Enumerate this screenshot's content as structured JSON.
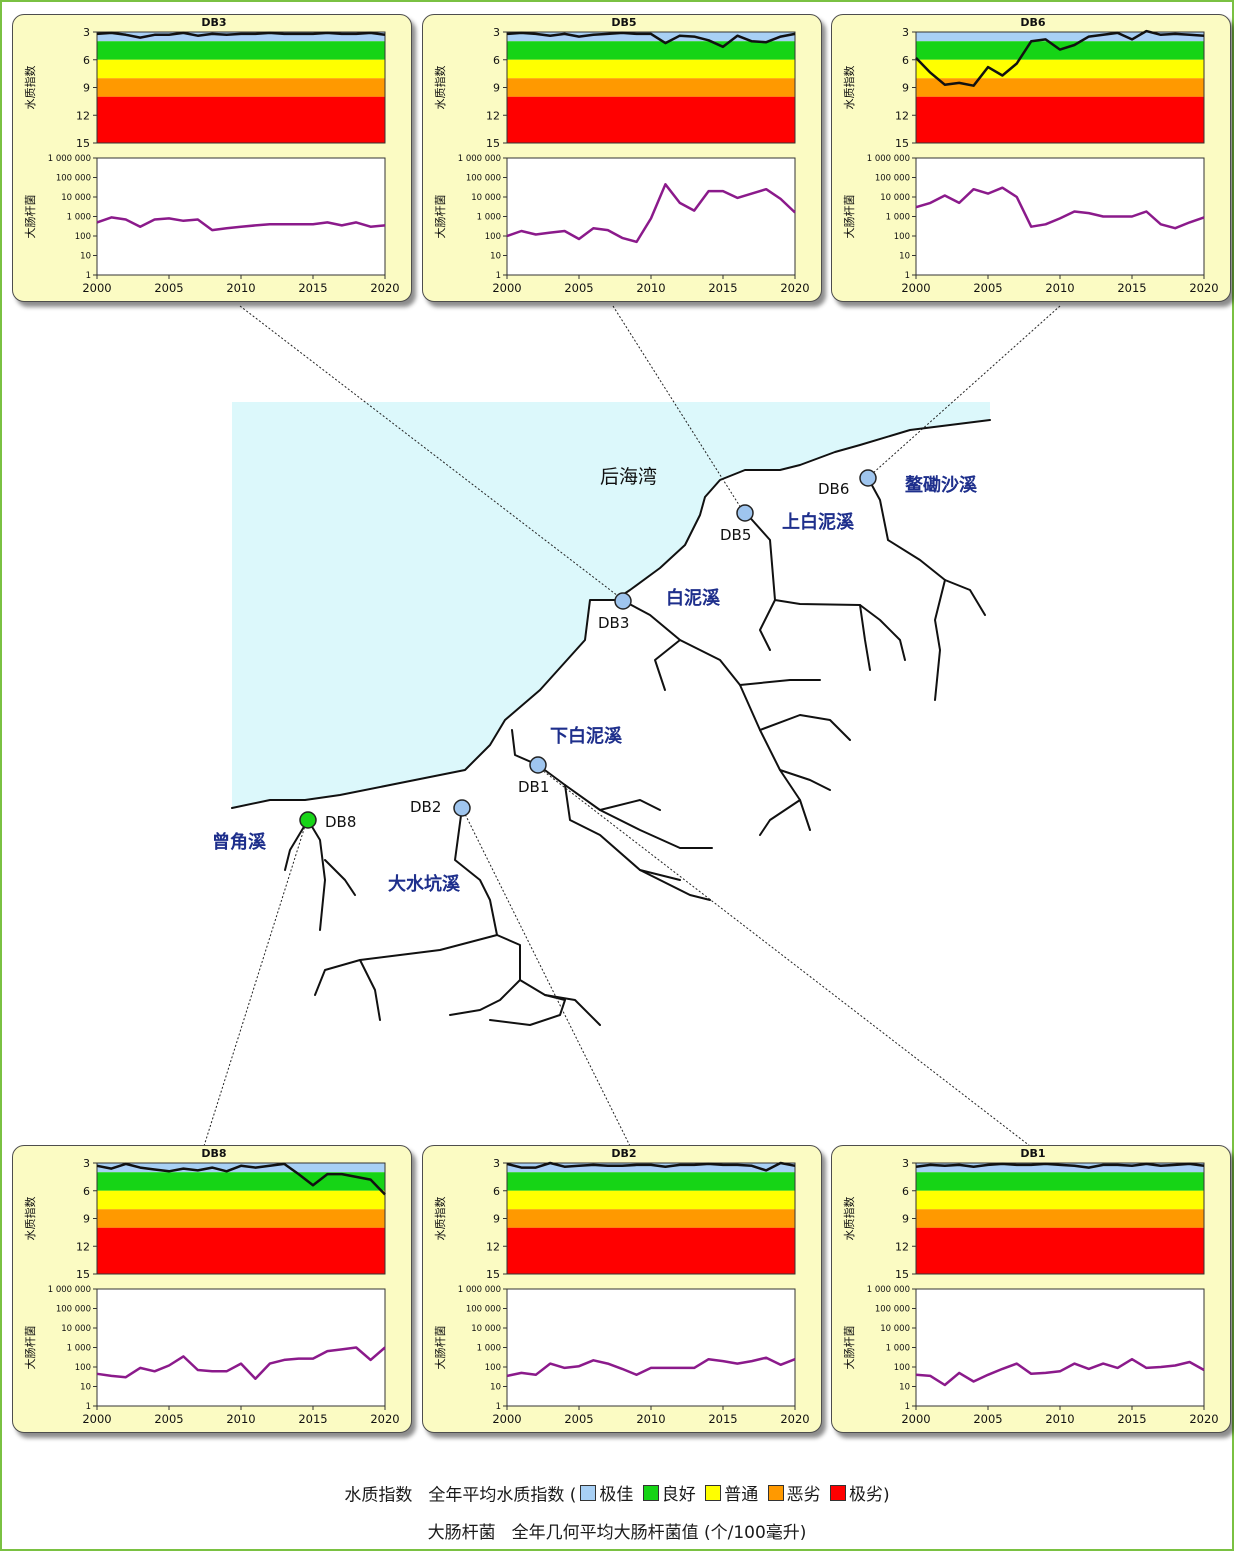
{
  "map": {
    "bay_label": "后海湾",
    "stream_labels": [
      "鳌磡沙溪",
      "上白泥溪",
      "白泥溪",
      "下白泥溪",
      "曾角溪",
      "大水坑溪"
    ],
    "station_labels": [
      "DB6",
      "DB5",
      "DB3",
      "DB1",
      "DB2",
      "DB8"
    ],
    "colors": {
      "sea": "#dcf8fb",
      "station_excellent": "#9fc5ee",
      "station_good": "#18d418",
      "stream_label": "#1e2f8c"
    }
  },
  "panel_text": {
    "wqi_label": "水质指数",
    "ecoli_label": "大肠杆菌",
    "wqi_ticks": [
      "3",
      "6",
      "9",
      "12",
      "15"
    ],
    "ecoli_ticks": [
      "1 000 000",
      "100 000",
      "10 000",
      "1 000",
      "100",
      "10",
      "1"
    ],
    "x_ticks": [
      "2000",
      "2005",
      "2010",
      "2015",
      "2020"
    ]
  },
  "legend": {
    "line1_term": "水质指数",
    "line1_desc": "全年平均水质指数 (",
    "categories": [
      "极佳",
      "良好",
      "普通",
      "恶劣",
      "极劣"
    ],
    "category_colors": [
      "#a8d0f5",
      "#16d416",
      "#ffff00",
      "#ff9900",
      "#ff0000"
    ],
    "close": ")",
    "line2_term": "大肠杆菌",
    "line2_desc": "全年几何平均大肠杆菌值 (个/100毫升)"
  },
  "chart_data": [
    {
      "type": "line",
      "title": "DB3",
      "x": [
        2000,
        2001,
        2002,
        2003,
        2004,
        2005,
        2006,
        2007,
        2008,
        2009,
        2010,
        2011,
        2012,
        2013,
        2014,
        2015,
        2016,
        2017,
        2018,
        2019,
        2020
      ],
      "wqi": [
        3.2,
        3.1,
        3.3,
        3.6,
        3.3,
        3.3,
        3.1,
        3.4,
        3.2,
        3.3,
        3.2,
        3.2,
        3.1,
        3.2,
        3.2,
        3.2,
        3.1,
        3.2,
        3.2,
        3.1,
        3.3
      ],
      "ecoli": [
        500,
        900,
        700,
        300,
        700,
        800,
        600,
        700,
        200,
        250,
        300,
        350,
        400,
        400,
        400,
        400,
        500,
        350,
        500,
        300,
        350
      ]
    },
    {
      "type": "line",
      "title": "DB5",
      "x": [
        2000,
        2001,
        2002,
        2003,
        2004,
        2005,
        2006,
        2007,
        2008,
        2009,
        2010,
        2011,
        2012,
        2013,
        2014,
        2015,
        2016,
        2017,
        2018,
        2019,
        2020
      ],
      "wqi": [
        3.2,
        3.1,
        3.2,
        3.4,
        3.2,
        3.5,
        3.3,
        3.2,
        3.1,
        3.2,
        3.2,
        4.2,
        3.4,
        3.5,
        3.9,
        4.6,
        3.4,
        4.0,
        4.1,
        3.5,
        3.2
      ],
      "ecoli": [
        100,
        180,
        120,
        150,
        180,
        70,
        250,
        200,
        80,
        50,
        800,
        45000,
        5000,
        2000,
        20000,
        20000,
        9000,
        15000,
        25000,
        8000,
        1600
      ]
    },
    {
      "type": "line",
      "title": "DB6",
      "x": [
        2000,
        2001,
        2002,
        2003,
        2004,
        2005,
        2006,
        2007,
        2008,
        2009,
        2010,
        2011,
        2012,
        2013,
        2014,
        2015,
        2016,
        2017,
        2018,
        2019,
        2020
      ],
      "wqi": [
        5.8,
        7.4,
        8.7,
        8.5,
        8.8,
        6.8,
        7.7,
        6.4,
        4.0,
        3.8,
        4.9,
        4.4,
        3.5,
        3.3,
        3.1,
        3.8,
        2.9,
        3.3,
        3.2,
        3.3,
        3.4
      ],
      "ecoli": [
        3000,
        5000,
        12000,
        5000,
        25000,
        15000,
        30000,
        10000,
        300,
        400,
        800,
        1800,
        1500,
        1000,
        1000,
        1000,
        1800,
        400,
        250,
        500,
        900
      ]
    },
    {
      "type": "line",
      "title": "DB8",
      "x": [
        2000,
        2001,
        2002,
        2003,
        2004,
        2005,
        2006,
        2007,
        2008,
        2009,
        2010,
        2011,
        2012,
        2013,
        2014,
        2015,
        2016,
        2017,
        2018,
        2019,
        2020
      ],
      "wqi": [
        3.3,
        3.6,
        3.1,
        3.5,
        3.7,
        3.9,
        3.6,
        3.8,
        3.5,
        3.9,
        3.3,
        3.5,
        3.3,
        3.1,
        4.2,
        5.4,
        4.2,
        4.2,
        4.5,
        4.8,
        6.4
      ],
      "ecoli": [
        45,
        35,
        30,
        90,
        60,
        120,
        350,
        70,
        60,
        60,
        150,
        25,
        150,
        230,
        270,
        270,
        650,
        800,
        1000,
        230,
        1000
      ]
    },
    {
      "type": "line",
      "title": "DB2",
      "x": [
        2000,
        2001,
        2002,
        2003,
        2004,
        2005,
        2006,
        2007,
        2008,
        2009,
        2010,
        2011,
        2012,
        2013,
        2014,
        2015,
        2016,
        2017,
        2018,
        2019,
        2020
      ],
      "wqi": [
        3.1,
        3.5,
        3.5,
        3.0,
        3.4,
        3.3,
        3.2,
        3.3,
        3.3,
        3.2,
        3.2,
        3.4,
        3.2,
        3.2,
        3.1,
        3.2,
        3.2,
        3.3,
        3.8,
        3.0,
        3.3
      ],
      "ecoli": [
        35,
        50,
        40,
        150,
        90,
        110,
        220,
        150,
        80,
        40,
        90,
        90,
        90,
        90,
        250,
        200,
        150,
        200,
        300,
        130,
        250
      ]
    },
    {
      "type": "line",
      "title": "DB1",
      "x": [
        2000,
        2001,
        2002,
        2003,
        2004,
        2005,
        2006,
        2007,
        2008,
        2009,
        2010,
        2011,
        2012,
        2013,
        2014,
        2015,
        2016,
        2017,
        2018,
        2019,
        2020
      ],
      "wqi": [
        3.4,
        3.2,
        3.3,
        3.2,
        3.4,
        3.2,
        3.1,
        3.2,
        3.2,
        3.1,
        3.2,
        3.3,
        3.5,
        3.2,
        3.2,
        3.3,
        3.1,
        3.3,
        3.2,
        3.1,
        3.3
      ],
      "ecoli": [
        40,
        35,
        12,
        50,
        18,
        40,
        80,
        150,
        45,
        50,
        60,
        150,
        80,
        150,
        90,
        250,
        90,
        100,
        120,
        180,
        70
      ]
    }
  ]
}
